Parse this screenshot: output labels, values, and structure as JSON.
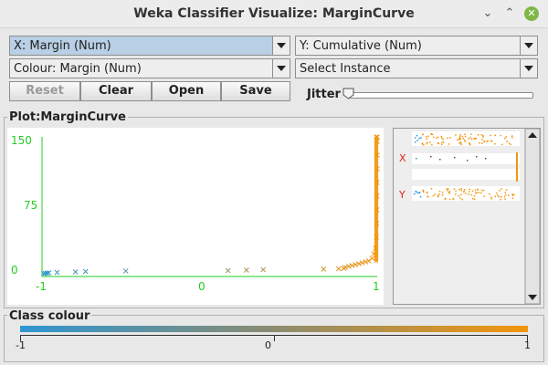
{
  "window": {
    "title": "Weka Classifier Visualize: MarginCurve",
    "minimize_glyph": "⌄",
    "maximize_glyph": "⌃",
    "close_glyph": "✕"
  },
  "controls": {
    "x_axis_select": "X: Margin (Num)",
    "y_axis_select": "Y: Cumulative (Num)",
    "colour_select": "Colour: Margin (Num)",
    "instance_select": "Select Instance",
    "reset_label": "Reset",
    "clear_label": "Clear",
    "open_label": "Open",
    "save_label": "Save",
    "jitter_label": "Jitter",
    "jitter_value": 0
  },
  "plot": {
    "label": "Plot:MarginCurve"
  },
  "attribute_panel": {
    "x_marker": "X",
    "y_marker": "Y"
  },
  "class_colour": {
    "label": "Class colour",
    "min_label": "-1",
    "mid_label": "0",
    "max_label": "1",
    "low_color": "#2f96d2",
    "high_color": "#f2960e"
  },
  "chart_data": {
    "type": "scatter",
    "title": "",
    "xlabel": "",
    "ylabel": "",
    "xlim": [
      -1,
      1
    ],
    "ylim": [
      0,
      150
    ],
    "x_tick_labels": [
      "-1",
      "0",
      "1"
    ],
    "y_tick_labels": [
      "0",
      "75",
      "150"
    ],
    "axis_color": "#22cc22",
    "marker": "x",
    "points": [
      {
        "x": -0.99,
        "y": 0.3
      },
      {
        "x": -0.98,
        "y": 0.5
      },
      {
        "x": -0.97,
        "y": 0.7
      },
      {
        "x": -0.96,
        "y": 1
      },
      {
        "x": -0.91,
        "y": 1.5
      },
      {
        "x": -0.8,
        "y": 2
      },
      {
        "x": -0.74,
        "y": 2.5
      },
      {
        "x": -0.5,
        "y": 3
      },
      {
        "x": 0.11,
        "y": 3.5
      },
      {
        "x": 0.22,
        "y": 4
      },
      {
        "x": 0.32,
        "y": 4.5
      },
      {
        "x": 0.68,
        "y": 5
      },
      {
        "x": 0.77,
        "y": 5.5
      },
      {
        "x": 0.8,
        "y": 6
      },
      {
        "x": 0.81,
        "y": 7
      },
      {
        "x": 0.83,
        "y": 8
      },
      {
        "x": 0.85,
        "y": 9
      },
      {
        "x": 0.87,
        "y": 10
      },
      {
        "x": 0.89,
        "y": 11
      },
      {
        "x": 0.91,
        "y": 12
      },
      {
        "x": 0.93,
        "y": 13
      },
      {
        "x": 0.95,
        "y": 14
      },
      {
        "x": 0.97,
        "y": 17
      },
      {
        "x": 0.98,
        "y": 22
      },
      {
        "x": 0.99,
        "y": 28
      },
      {
        "x": 0.995,
        "y": 40
      },
      {
        "x": 0.997,
        "y": 55
      },
      {
        "x": 0.998,
        "y": 70
      },
      {
        "x": 0.999,
        "y": 85
      },
      {
        "x": 0.999,
        "y": 100
      },
      {
        "x": 1.0,
        "y": 115
      },
      {
        "x": 1.0,
        "y": 130
      },
      {
        "x": 1.0,
        "y": 145
      },
      {
        "x": 1.0,
        "y": 150
      }
    ]
  }
}
